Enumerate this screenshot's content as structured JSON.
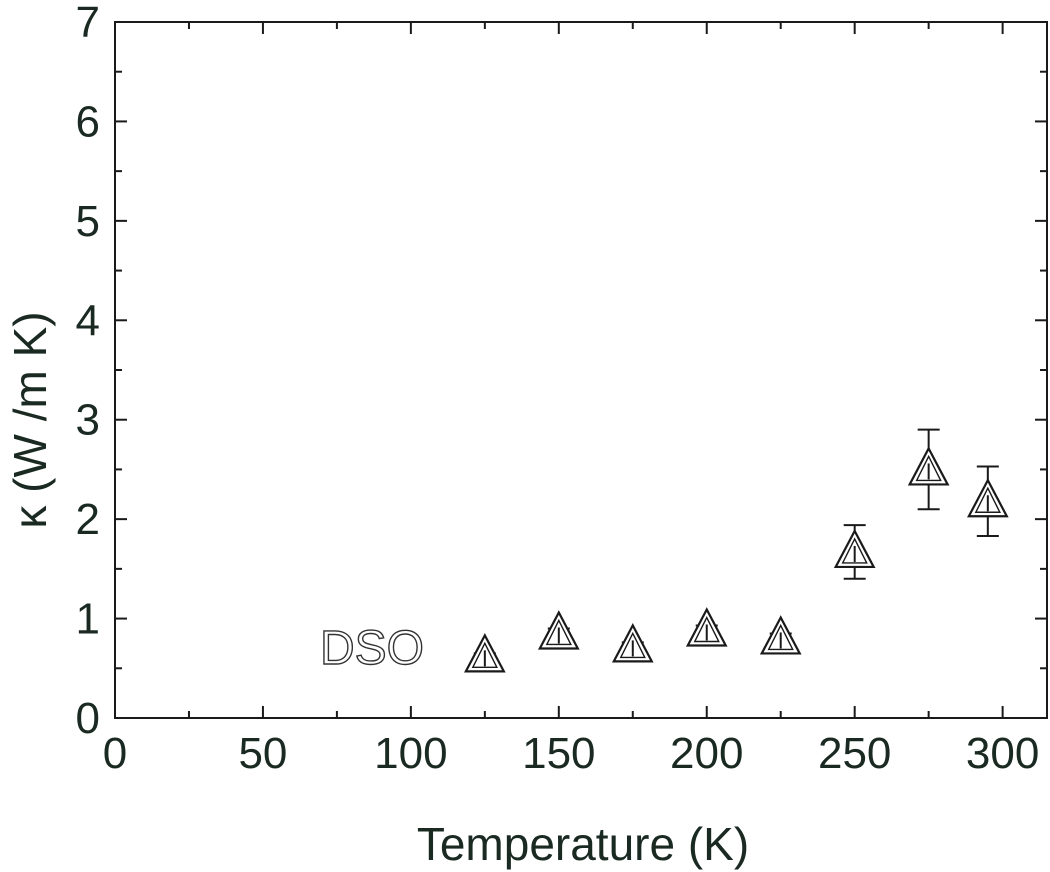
{
  "chart_data": {
    "type": "scatter",
    "xlabel": "Temperature (K)",
    "ylabel": "κ (W /m K)",
    "xlim": [
      0,
      315
    ],
    "ylim": [
      0,
      7
    ],
    "xticks": [
      0,
      50,
      100,
      150,
      200,
      250,
      300
    ],
    "yticks": [
      0,
      1,
      2,
      3,
      4,
      5,
      6,
      7
    ],
    "grid": false,
    "marker": "open-triangle",
    "annotation": "DSO",
    "series": [
      {
        "x": [
          125,
          150,
          175,
          200,
          225,
          250,
          275,
          295
        ],
        "y": [
          0.62,
          0.85,
          0.72,
          0.88,
          0.8,
          1.67,
          2.5,
          2.18
        ],
        "err": [
          0.03,
          0.05,
          0.04,
          0.05,
          0.05,
          0.27,
          0.4,
          0.35
        ]
      }
    ]
  }
}
